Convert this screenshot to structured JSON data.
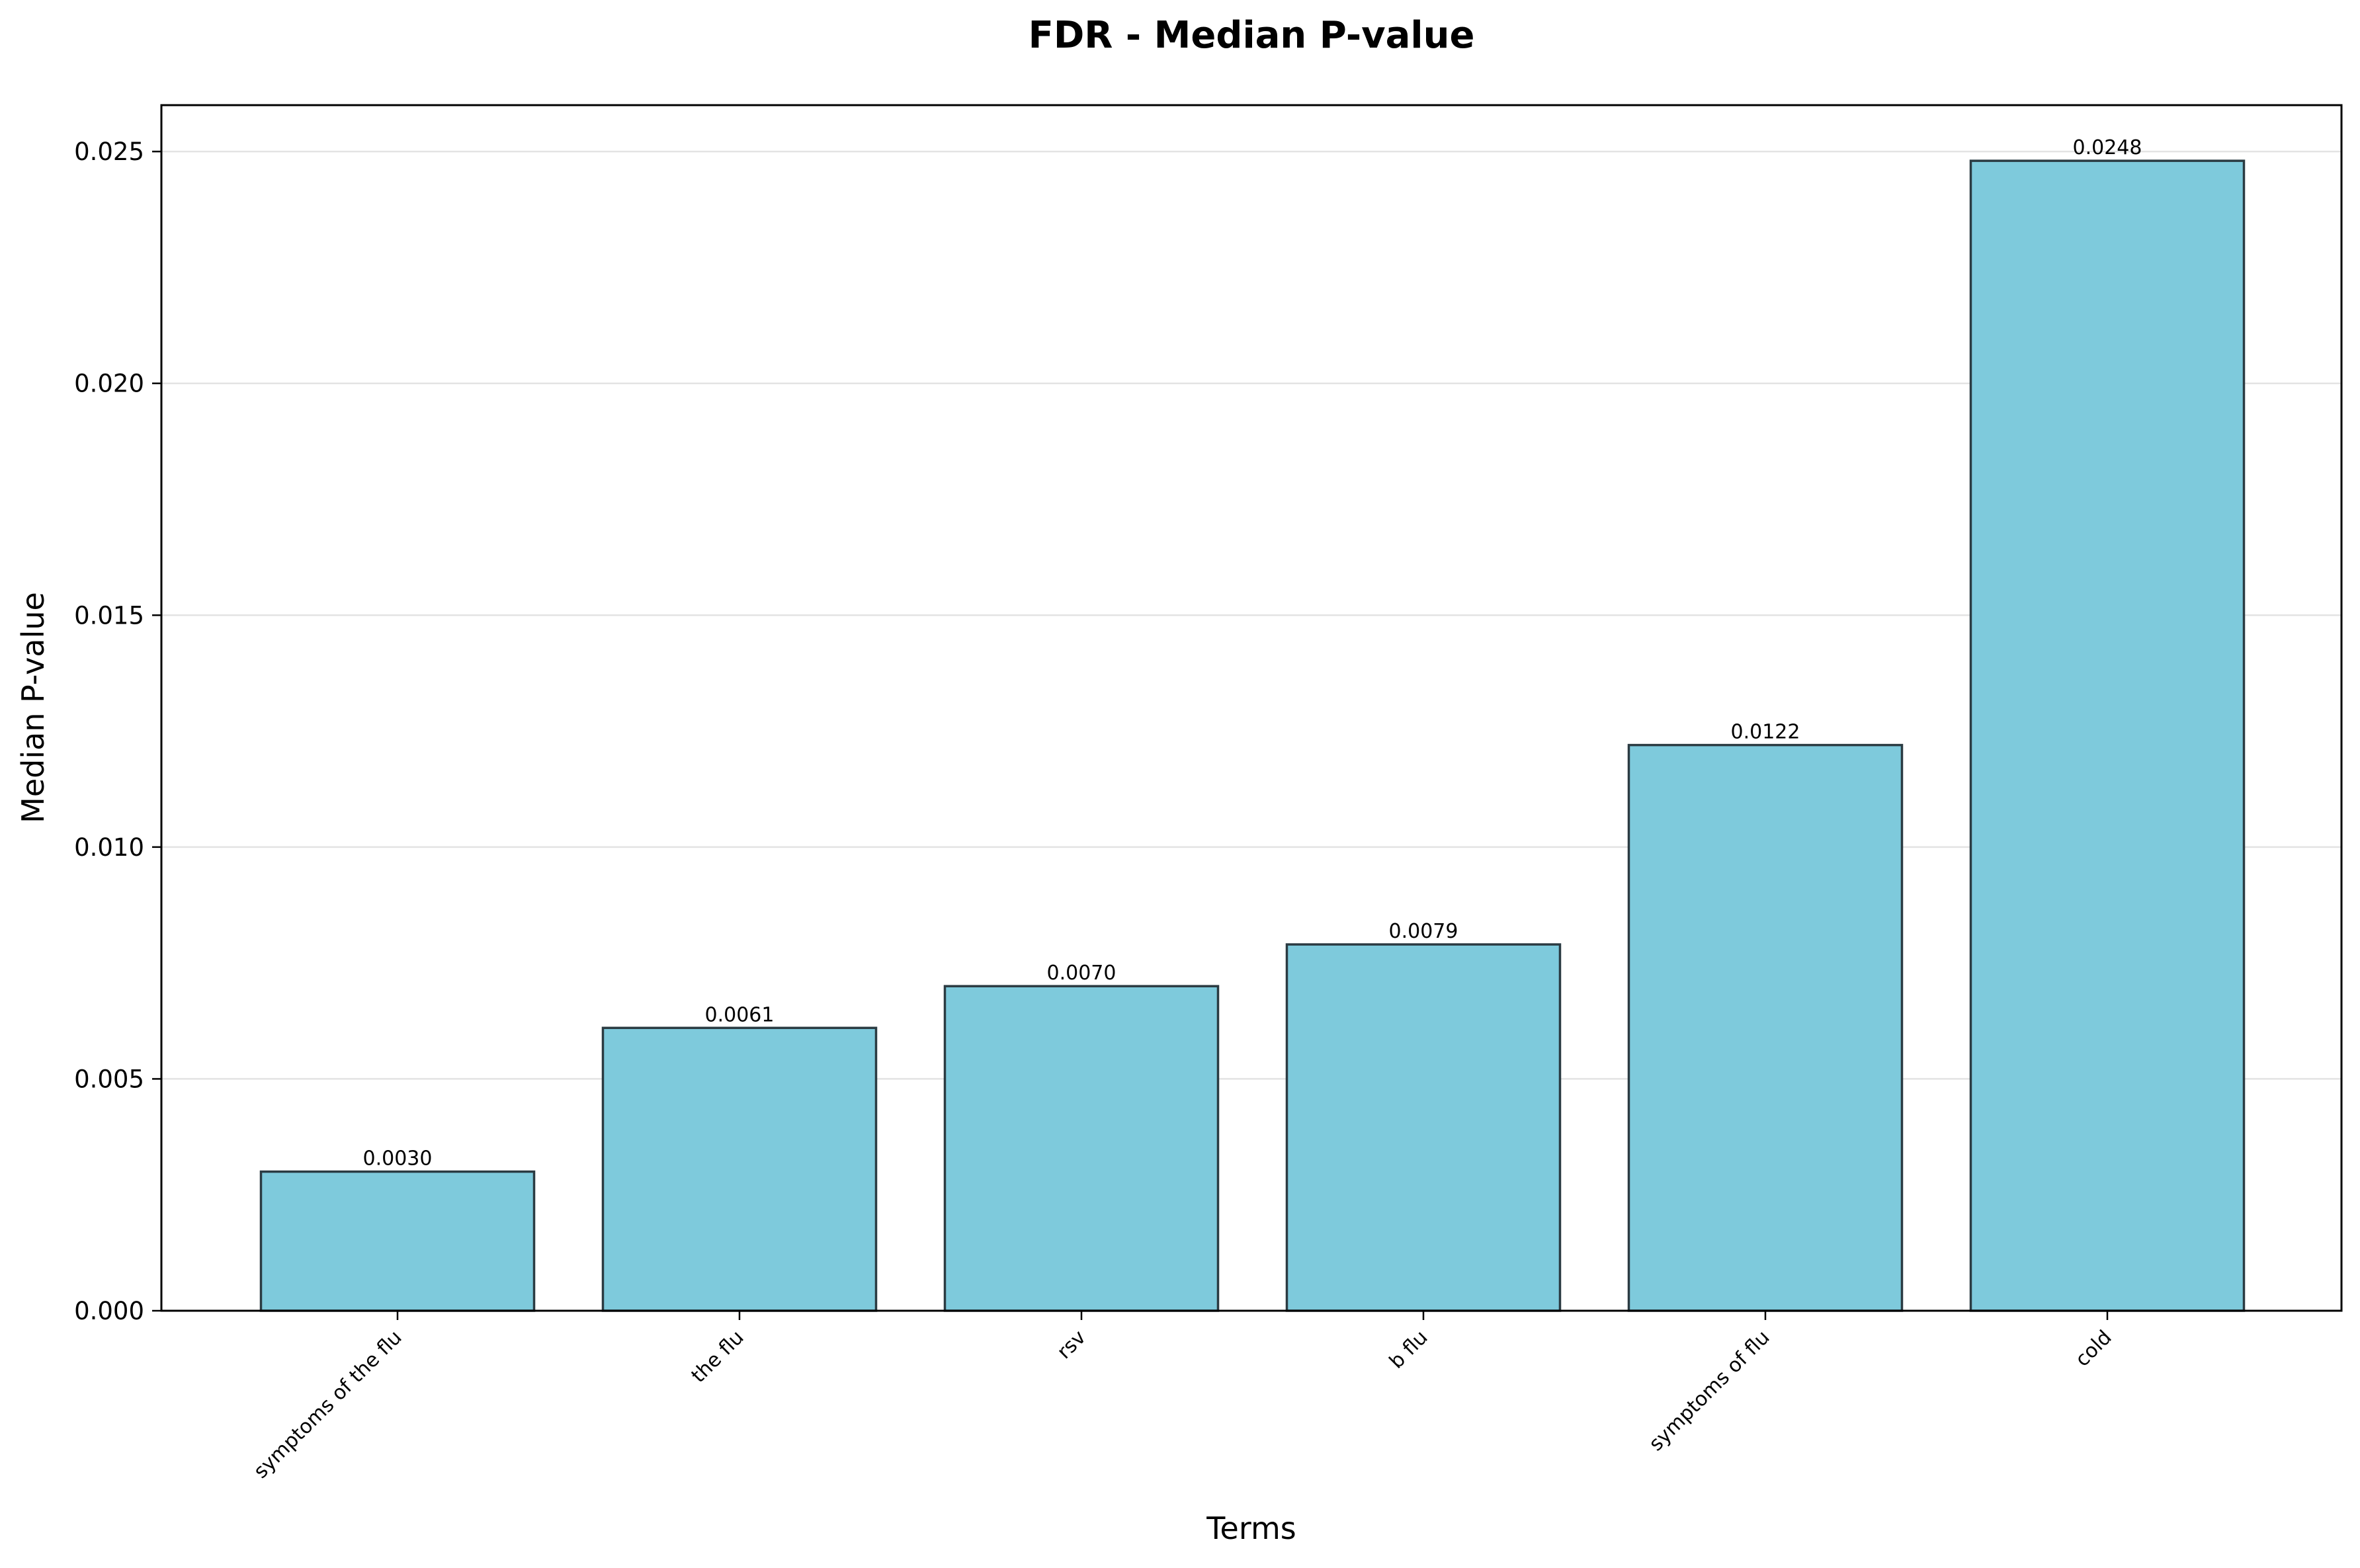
{
  "chart_data": {
    "type": "bar",
    "title": "FDR - Median P-value",
    "xlabel": "Terms",
    "ylabel": "Median P-value",
    "categories": [
      "symptoms of the flu",
      "the flu",
      "rsv",
      "b flu",
      "symptoms of flu",
      "cold"
    ],
    "values": [
      0.003,
      0.0061,
      0.007,
      0.0079,
      0.0122,
      0.0248
    ],
    "value_labels": [
      "0.0030",
      "0.0061",
      "0.0070",
      "0.0079",
      "0.0122",
      "0.0248"
    ],
    "yticks": [
      0.0,
      0.005,
      0.01,
      0.015,
      0.02,
      0.025
    ],
    "ytick_labels": [
      "0.000",
      "0.005",
      "0.010",
      "0.015",
      "0.020",
      "0.025"
    ],
    "ylim": [
      0,
      0.026
    ],
    "grid": "horizontal",
    "legend": "none",
    "colors": {
      "bar_fill": "#7ecadc",
      "bar_edge": "#2b3b42",
      "grid": "#e3e3e3"
    }
  }
}
